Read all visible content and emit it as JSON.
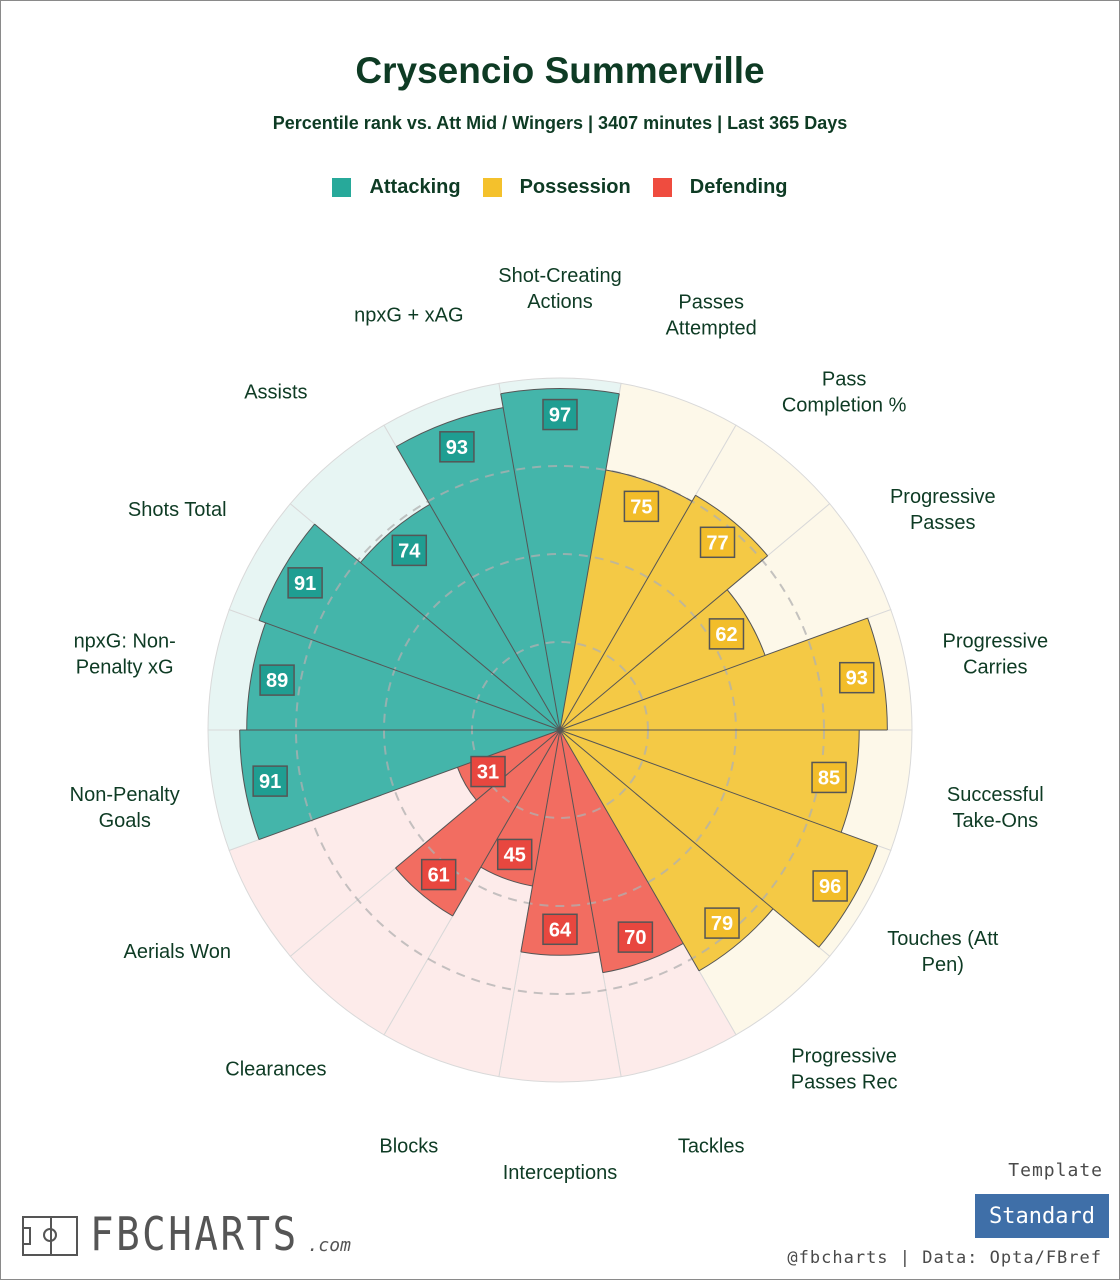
{
  "title": "Crysencio Summerville",
  "subtitle": "Percentile rank vs. Att Mid / Wingers | 3407 minutes | Last 365 Days",
  "legend": [
    {
      "label": "Attacking",
      "color": "#27a99a"
    },
    {
      "label": "Possession",
      "color": "#f4c12c"
    },
    {
      "label": "Defending",
      "color": "#ef4c3f"
    }
  ],
  "template": {
    "label": "Template",
    "value": "Standard"
  },
  "credit": "@fbcharts | Data: Opta/FBref",
  "logo": {
    "text": "FBCHARTS",
    "suffix": ".com"
  },
  "chart_data": {
    "type": "polar-bar",
    "scale": [
      0,
      100
    ],
    "gridlines": [
      25,
      50,
      75
    ],
    "categories": [
      {
        "label": "Shot-Creating Actions",
        "group": "Attacking",
        "value": 97,
        "wrap": [
          "Shot-Creating",
          "Actions"
        ]
      },
      {
        "label": "Passes Attempted",
        "group": "Possession",
        "value": 75,
        "wrap": [
          "Passes",
          "Attempted"
        ]
      },
      {
        "label": "Pass Completion %",
        "group": "Possession",
        "value": 77,
        "wrap": [
          "Pass",
          "Completion %"
        ]
      },
      {
        "label": "Progressive Passes",
        "group": "Possession",
        "value": 62,
        "wrap": [
          "Progressive",
          "Passes"
        ]
      },
      {
        "label": "Progressive Carries",
        "group": "Possession",
        "value": 93,
        "wrap": [
          "Progressive",
          "Carries"
        ]
      },
      {
        "label": "Successful Take-Ons",
        "group": "Possession",
        "value": 85,
        "wrap": [
          "Successful",
          "Take-Ons"
        ]
      },
      {
        "label": "Touches (Att Pen)",
        "group": "Possession",
        "value": 96,
        "wrap": [
          "Touches (Att",
          "Pen)"
        ]
      },
      {
        "label": "Progressive Passes Rec",
        "group": "Possession",
        "value": 79,
        "wrap": [
          "Progressive",
          "Passes Rec"
        ]
      },
      {
        "label": "Tackles",
        "group": "Defending",
        "value": 70,
        "wrap": [
          "Tackles"
        ]
      },
      {
        "label": "Interceptions",
        "group": "Defending",
        "value": 64,
        "wrap": [
          "Interceptions"
        ]
      },
      {
        "label": "Blocks",
        "group": "Defending",
        "value": 45,
        "wrap": [
          "Blocks"
        ]
      },
      {
        "label": "Clearances",
        "group": "Defending",
        "value": 61,
        "wrap": [
          "Clearances"
        ]
      },
      {
        "label": "Aerials Won",
        "group": "Defending",
        "value": 31,
        "wrap": [
          "Aerials Won"
        ]
      },
      {
        "label": "Non-Penalty Goals",
        "group": "Attacking",
        "value": 91,
        "wrap": [
          "Non-Penalty",
          "Goals"
        ]
      },
      {
        "label": "npxG: Non-Penalty xG",
        "group": "Attacking",
        "value": 89,
        "wrap": [
          "npxG: Non-",
          "Penalty xG"
        ]
      },
      {
        "label": "Shots Total",
        "group": "Attacking",
        "value": 91,
        "wrap": [
          "Shots Total"
        ]
      },
      {
        "label": "Assists",
        "group": "Attacking",
        "value": 74,
        "wrap": [
          "Assists"
        ]
      },
      {
        "label": "npxG + xAG",
        "group": "Attacking",
        "value": 93,
        "wrap": [
          "npxG + xAG"
        ]
      }
    ]
  }
}
